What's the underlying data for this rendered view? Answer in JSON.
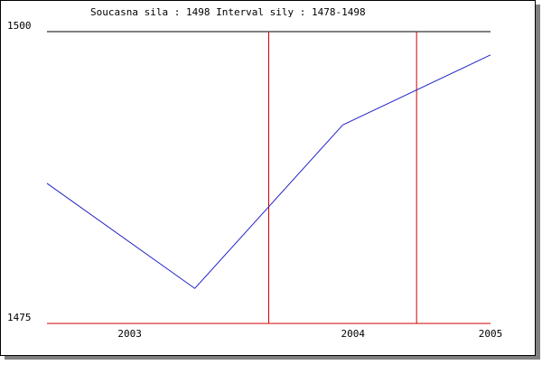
{
  "chart_data": {
    "type": "line",
    "title": "Soucasna sila : 1498  Interval sily : 1478-1498",
    "x": [
      0,
      1,
      2,
      3
    ],
    "series": [
      {
        "color": "#2424c8",
        "values": [
          1487,
          1478,
          1492,
          1498
        ]
      }
    ],
    "xlim": [
      0,
      3
    ],
    "xticks": [
      {
        "value": 0.56,
        "label": "2003"
      },
      {
        "value": 2.07,
        "label": "2004"
      },
      {
        "value": 3,
        "label": "2005"
      }
    ],
    "ylim": [
      1475,
      1500
    ],
    "yticks": [
      1475,
      1500
    ],
    "ytick_line_colors": [
      "#d00000",
      "#000000"
    ],
    "vlines": [
      1.5,
      2.5
    ],
    "vline_color": "#d00000"
  }
}
